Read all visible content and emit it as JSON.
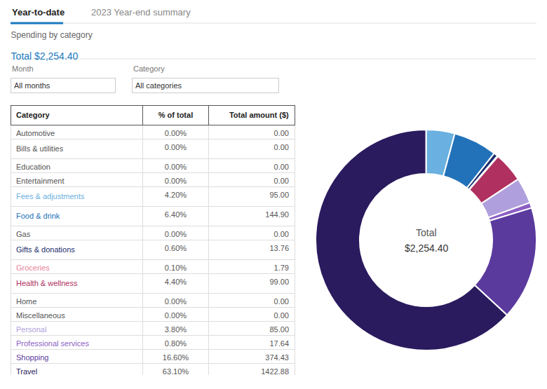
{
  "chart_data": [
    {
      "type": "pie",
      "title": "Spending by category",
      "subtitle": "Total $2,254.40",
      "categories": [
        "Fees & adjustments",
        "Food & drink",
        "Gifts & donations",
        "Groceries",
        "Health & wellness",
        "Personal",
        "Professional services",
        "Shopping",
        "Travel"
      ],
      "values": [
        4.2,
        6.4,
        0.6,
        0.1,
        4.4,
        3.8,
        0.8,
        16.6,
        63.1
      ],
      "colors": [
        "#6ab0e0",
        "#2272b9",
        "#1a2e6c",
        "#e8839a",
        "#b03060",
        "#b09fdd",
        "#8b5fc4",
        "#5b3a9e",
        "#2a1a5e"
      ],
      "data_labels": false,
      "annotations": [
        "Total",
        "$2,254.40"
      ]
    },
    {
      "type": "table",
      "headers": [
        "Category",
        "% of total",
        "Total amount ($)"
      ],
      "categories": [
        "Automotive",
        "Bills & utilities",
        "Education",
        "Entertainment",
        "Fees & adjustments",
        "Food & drink",
        "Gas",
        "Gifts & donations",
        "Groceries",
        "Health & wellness",
        "Home",
        "Miscellaneous",
        "Personal",
        "Professional services",
        "Shopping",
        "Travel"
      ],
      "colors": [
        null,
        null,
        null,
        null,
        "#6ab0e0",
        "#2272b9",
        null,
        "#1a2e6c",
        "#e8839a",
        "#b03060",
        null,
        null,
        "#b09fdd",
        "#8b5fc4",
        "#5b3a9e",
        "#2a1a5e"
      ],
      "series": [
        {
          "name": "% of total",
          "values": [
            0.0,
            0.0,
            0.0,
            0.0,
            4.2,
            6.4,
            0.0,
            0.6,
            0.1,
            4.4,
            0.0,
            0.0,
            3.8,
            0.8,
            16.6,
            63.1
          ],
          "value_labels": [
            "0.00%",
            "0.00%",
            "0.00%",
            "0.00%",
            "4.20%",
            "6.40%",
            "0.00%",
            "0.60%",
            "0.10%",
            "4.40%",
            "0.00%",
            "0.00%",
            "3.80%",
            "0.80%",
            "16.60%",
            "63.10%"
          ]
        },
        {
          "name": "Total amount ($)",
          "values": [
            0.0,
            0.0,
            0.0,
            0.0,
            95.0,
            144.9,
            0.0,
            13.76,
            1.79,
            99.0,
            0.0,
            0.0,
            85.0,
            17.64,
            374.43,
            1422.88
          ],
          "value_labels": [
            "0.00",
            "0.00",
            "0.00",
            "0.00",
            "95.00",
            "144.90",
            "0.00",
            "13.76",
            "1.79",
            "99.00",
            "0.00",
            "0.00",
            "85.00",
            "17.64",
            "374.43",
            "1422.88"
          ]
        }
      ],
      "annotations": [
        "Year-to-date",
        "2023 Year-end summary",
        "Month",
        "All months",
        "Category",
        "All categories"
      ]
    }
  ]
}
